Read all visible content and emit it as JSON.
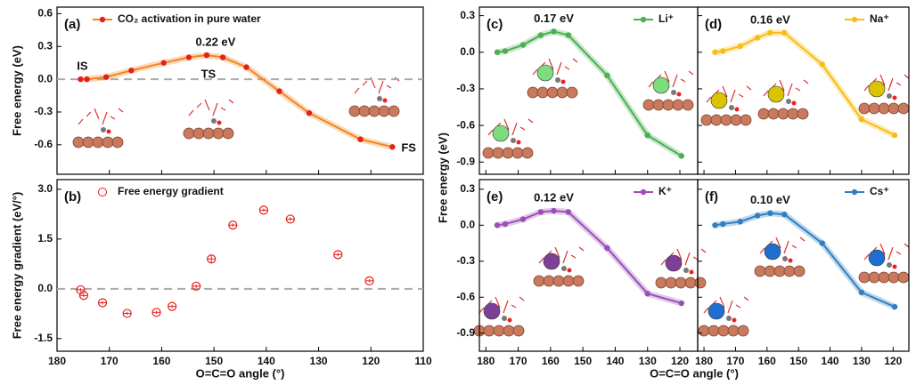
{
  "chart_data": [
    {
      "type": "line",
      "panel_label": "(a)",
      "ylabel": "Free energy (eV)",
      "xlim": [
        180,
        110
      ],
      "ylim": [
        -0.87,
        0.66
      ],
      "xticks": [
        180,
        170,
        160,
        150,
        140,
        130,
        120,
        110
      ],
      "yticks": [
        0.6,
        0.3,
        {
          "value": 0,
          "label": "0.0"
        },
        -0.3,
        -0.6
      ],
      "zero_line": true,
      "x": [
        175.5,
        174.3,
        170.6,
        165.8,
        159.6,
        154.8,
        151.4,
        148.3,
        143.8,
        137.5,
        131.8,
        122,
        115.9
      ],
      "series": [
        {
          "name": "CO₂ activation in pure water",
          "color": "#f5841f",
          "marker_color": "#e3201b",
          "values": [
            0,
            0,
            0.02,
            0.08,
            0.15,
            0.2,
            0.22,
            0.2,
            0.11,
            -0.11,
            -0.31,
            -0.55,
            -0.62
          ]
        }
      ],
      "annotations": [
        "IS",
        "TS",
        "0.22 eV",
        "FS"
      ]
    },
    {
      "type": "scatter",
      "panel_label": "(b)",
      "ylabel": "Free energy gradient (eV/°)",
      "xlabel": "O=C=O angle (°)",
      "xlim": [
        180,
        110
      ],
      "ylim": [
        -1.88,
        3.29
      ],
      "xticks": [
        180,
        170,
        160,
        150,
        140,
        130,
        120,
        110
      ],
      "yticks": [
        {
          "value": 3,
          "label": "3.0"
        },
        1.5,
        {
          "value": 0,
          "label": "0.0"
        },
        -1.5
      ],
      "zero_line": true,
      "x": [
        175.5,
        174.9,
        171.3,
        166.6,
        161,
        158,
        153.4,
        150.5,
        146.4,
        140.5,
        135.4,
        126.3,
        120.3
      ],
      "series": [
        {
          "name": "Free energy gradient",
          "color": "#e3201b",
          "values": [
            -0.03,
            -0.2,
            -0.42,
            -0.74,
            -0.71,
            -0.53,
            0.08,
            0.9,
            1.92,
            2.37,
            2.1,
            1.03,
            0.24
          ],
          "errors": [
            0.05,
            0.05,
            0.05,
            0.05,
            0.05,
            0.05,
            0.05,
            0.12,
            0.05,
            0.05,
            0.06,
            0.05,
            0.05
          ]
        }
      ]
    },
    {
      "type": "line",
      "panel_label": "(c)",
      "ylabel": "Free energy (eV)",
      "xlim": [
        182,
        114.5
      ],
      "ylim": [
        -1.0,
        0.37
      ],
      "xticks": [
        180,
        170,
        160,
        150,
        140,
        130,
        120
      ],
      "yticks": [
        0.3,
        {
          "value": 0,
          "label": "0.0"
        },
        -0.3,
        -0.6,
        -0.9
      ],
      "x": [
        176.5,
        174,
        168.5,
        163,
        159,
        154.5,
        142.5,
        130,
        119.5
      ],
      "series": [
        {
          "name": "Li⁺",
          "color": "#4caf50",
          "values": [
            0,
            0.01,
            0.06,
            0.14,
            0.17,
            0.14,
            -0.19,
            -0.68,
            -0.85
          ]
        }
      ],
      "annotations": [
        "0.17 eV"
      ]
    },
    {
      "type": "line",
      "panel_label": "(d)",
      "xlim": [
        182,
        115
      ],
      "ylim": [
        -1.0,
        0.37
      ],
      "xticks": [
        180,
        170,
        160,
        150,
        140,
        130,
        120
      ],
      "yticks": [
        0.3,
        0,
        -0.3,
        -0.6,
        -0.9
      ],
      "x": [
        176.5,
        174,
        168.5,
        163,
        159,
        154.5,
        142.5,
        130,
        119.5
      ],
      "series": [
        {
          "name": "Na⁺",
          "color": "#f7be16",
          "values": [
            0,
            0.01,
            0.05,
            0.12,
            0.16,
            0.16,
            -0.1,
            -0.55,
            -0.68
          ]
        }
      ],
      "annotations": [
        "0.16 eV"
      ]
    },
    {
      "type": "line",
      "panel_label": "(e)",
      "xlabel": "O=C=O angle (°)",
      "xlim": [
        182,
        114.5
      ],
      "ylim": [
        -1.05,
        0.38
      ],
      "xticks": [
        180,
        170,
        160,
        150,
        140,
        130,
        120
      ],
      "yticks": [
        0.3,
        {
          "value": 0,
          "label": "0.0"
        },
        -0.3,
        -0.6,
        -0.9
      ],
      "x": [
        176.5,
        174,
        168.5,
        163,
        159,
        154.5,
        142.5,
        130,
        119.5
      ],
      "series": [
        {
          "name": "K⁺",
          "color": "#9b4fb5",
          "values": [
            0,
            0.01,
            0.05,
            0.11,
            0.12,
            0.11,
            -0.19,
            -0.57,
            -0.65
          ]
        }
      ],
      "annotations": [
        "0.12 eV"
      ]
    },
    {
      "type": "line",
      "panel_label": "(f)",
      "xlim": [
        182,
        115
      ],
      "ylim": [
        -1.05,
        0.38
      ],
      "xticks": [
        180,
        170,
        160,
        150,
        140,
        130,
        120
      ],
      "yticks": [
        0.3,
        0,
        -0.3,
        -0.6,
        -0.9
      ],
      "x": [
        176.5,
        174,
        168.5,
        163,
        159,
        154.5,
        142.5,
        130,
        119.5
      ],
      "series": [
        {
          "name": "Cs⁺",
          "color": "#2f7fc1",
          "values": [
            0,
            0.01,
            0.03,
            0.08,
            0.1,
            0.09,
            -0.15,
            -0.56,
            -0.68
          ]
        }
      ],
      "annotations": [
        "0.10 eV"
      ]
    }
  ]
}
